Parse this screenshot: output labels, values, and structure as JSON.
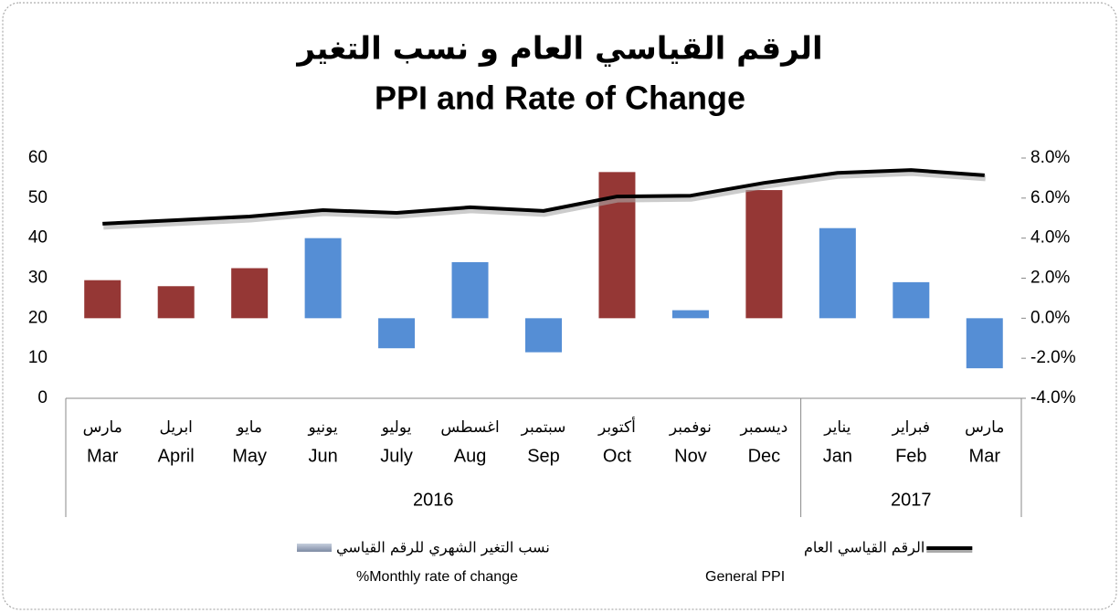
{
  "chart_data": {
    "type": "bar_line",
    "title": "الرقم القياسي العام و نسب التغير",
    "subtitle": "PPI and Rate of Change",
    "categories": [
      {
        "ar": "مارس",
        "en": "Mar",
        "year": "2016"
      },
      {
        "ar": "ابريل",
        "en": "April",
        "year": "2016"
      },
      {
        "ar": "مايو",
        "en": "May",
        "year": "2016"
      },
      {
        "ar": "يونيو",
        "en": "Jun",
        "year": "2016"
      },
      {
        "ar": "يوليو",
        "en": "July",
        "year": "2016"
      },
      {
        "ar": "اغسطس",
        "en": "Aug",
        "year": "2016"
      },
      {
        "ar": "سبتمبر",
        "en": "Sep",
        "year": "2016"
      },
      {
        "ar": "أكتوبر",
        "en": "Oct",
        "year": "2016"
      },
      {
        "ar": "نوفمبر",
        "en": "Nov",
        "year": "2016"
      },
      {
        "ar": "ديسمبر",
        "en": "Dec",
        "year": "2016"
      },
      {
        "ar": "يناير",
        "en": "Jan",
        "year": "2017"
      },
      {
        "ar": "فبراير",
        "en": "Feb",
        "year": "2017"
      },
      {
        "ar": "مارس",
        "en": "Mar",
        "year": "2017"
      }
    ],
    "series": [
      {
        "name": "نسب التغير الشهري للرقم القياسي",
        "name_en": "%Monthly rate of change",
        "type": "bar",
        "axis": "y2",
        "colors": [
          "#953735",
          "#953735",
          "#953735",
          "#558ed5",
          "#558ed5",
          "#558ed5",
          "#558ed5",
          "#953735",
          "#558ed5",
          "#953735",
          "#558ed5",
          "#558ed5",
          "#558ed5"
        ],
        "values": [
          1.9,
          1.6,
          2.5,
          4.0,
          -1.5,
          2.8,
          -1.7,
          7.3,
          0.4,
          6.4,
          4.5,
          1.8,
          -2.5
        ]
      },
      {
        "name": "الرقم القياسي العام",
        "name_en": "General  PPI",
        "type": "line",
        "color": "#000000",
        "values": [
          43.6,
          44.5,
          45.4,
          47.0,
          46.3,
          47.7,
          46.8,
          50.4,
          50.6,
          53.8,
          56.3,
          57.0,
          55.7
        ]
      }
    ],
    "ylim": [
      0,
      60
    ],
    "yticks": [
      0,
      10,
      20,
      30,
      40,
      50,
      60
    ],
    "y2lim": [
      -4,
      8
    ],
    "y2ticks": [
      {
        "value": -4,
        "label": "-4.0%"
      },
      {
        "value": -2,
        "label": "-2.0%"
      },
      {
        "value": 0,
        "label": "0.0%"
      },
      {
        "value": 2,
        "label": "2.0%"
      },
      {
        "value": 4,
        "label": "4.0%"
      },
      {
        "value": 6,
        "label": "6.0%"
      },
      {
        "value": 8,
        "label": "8.0%"
      }
    ]
  }
}
